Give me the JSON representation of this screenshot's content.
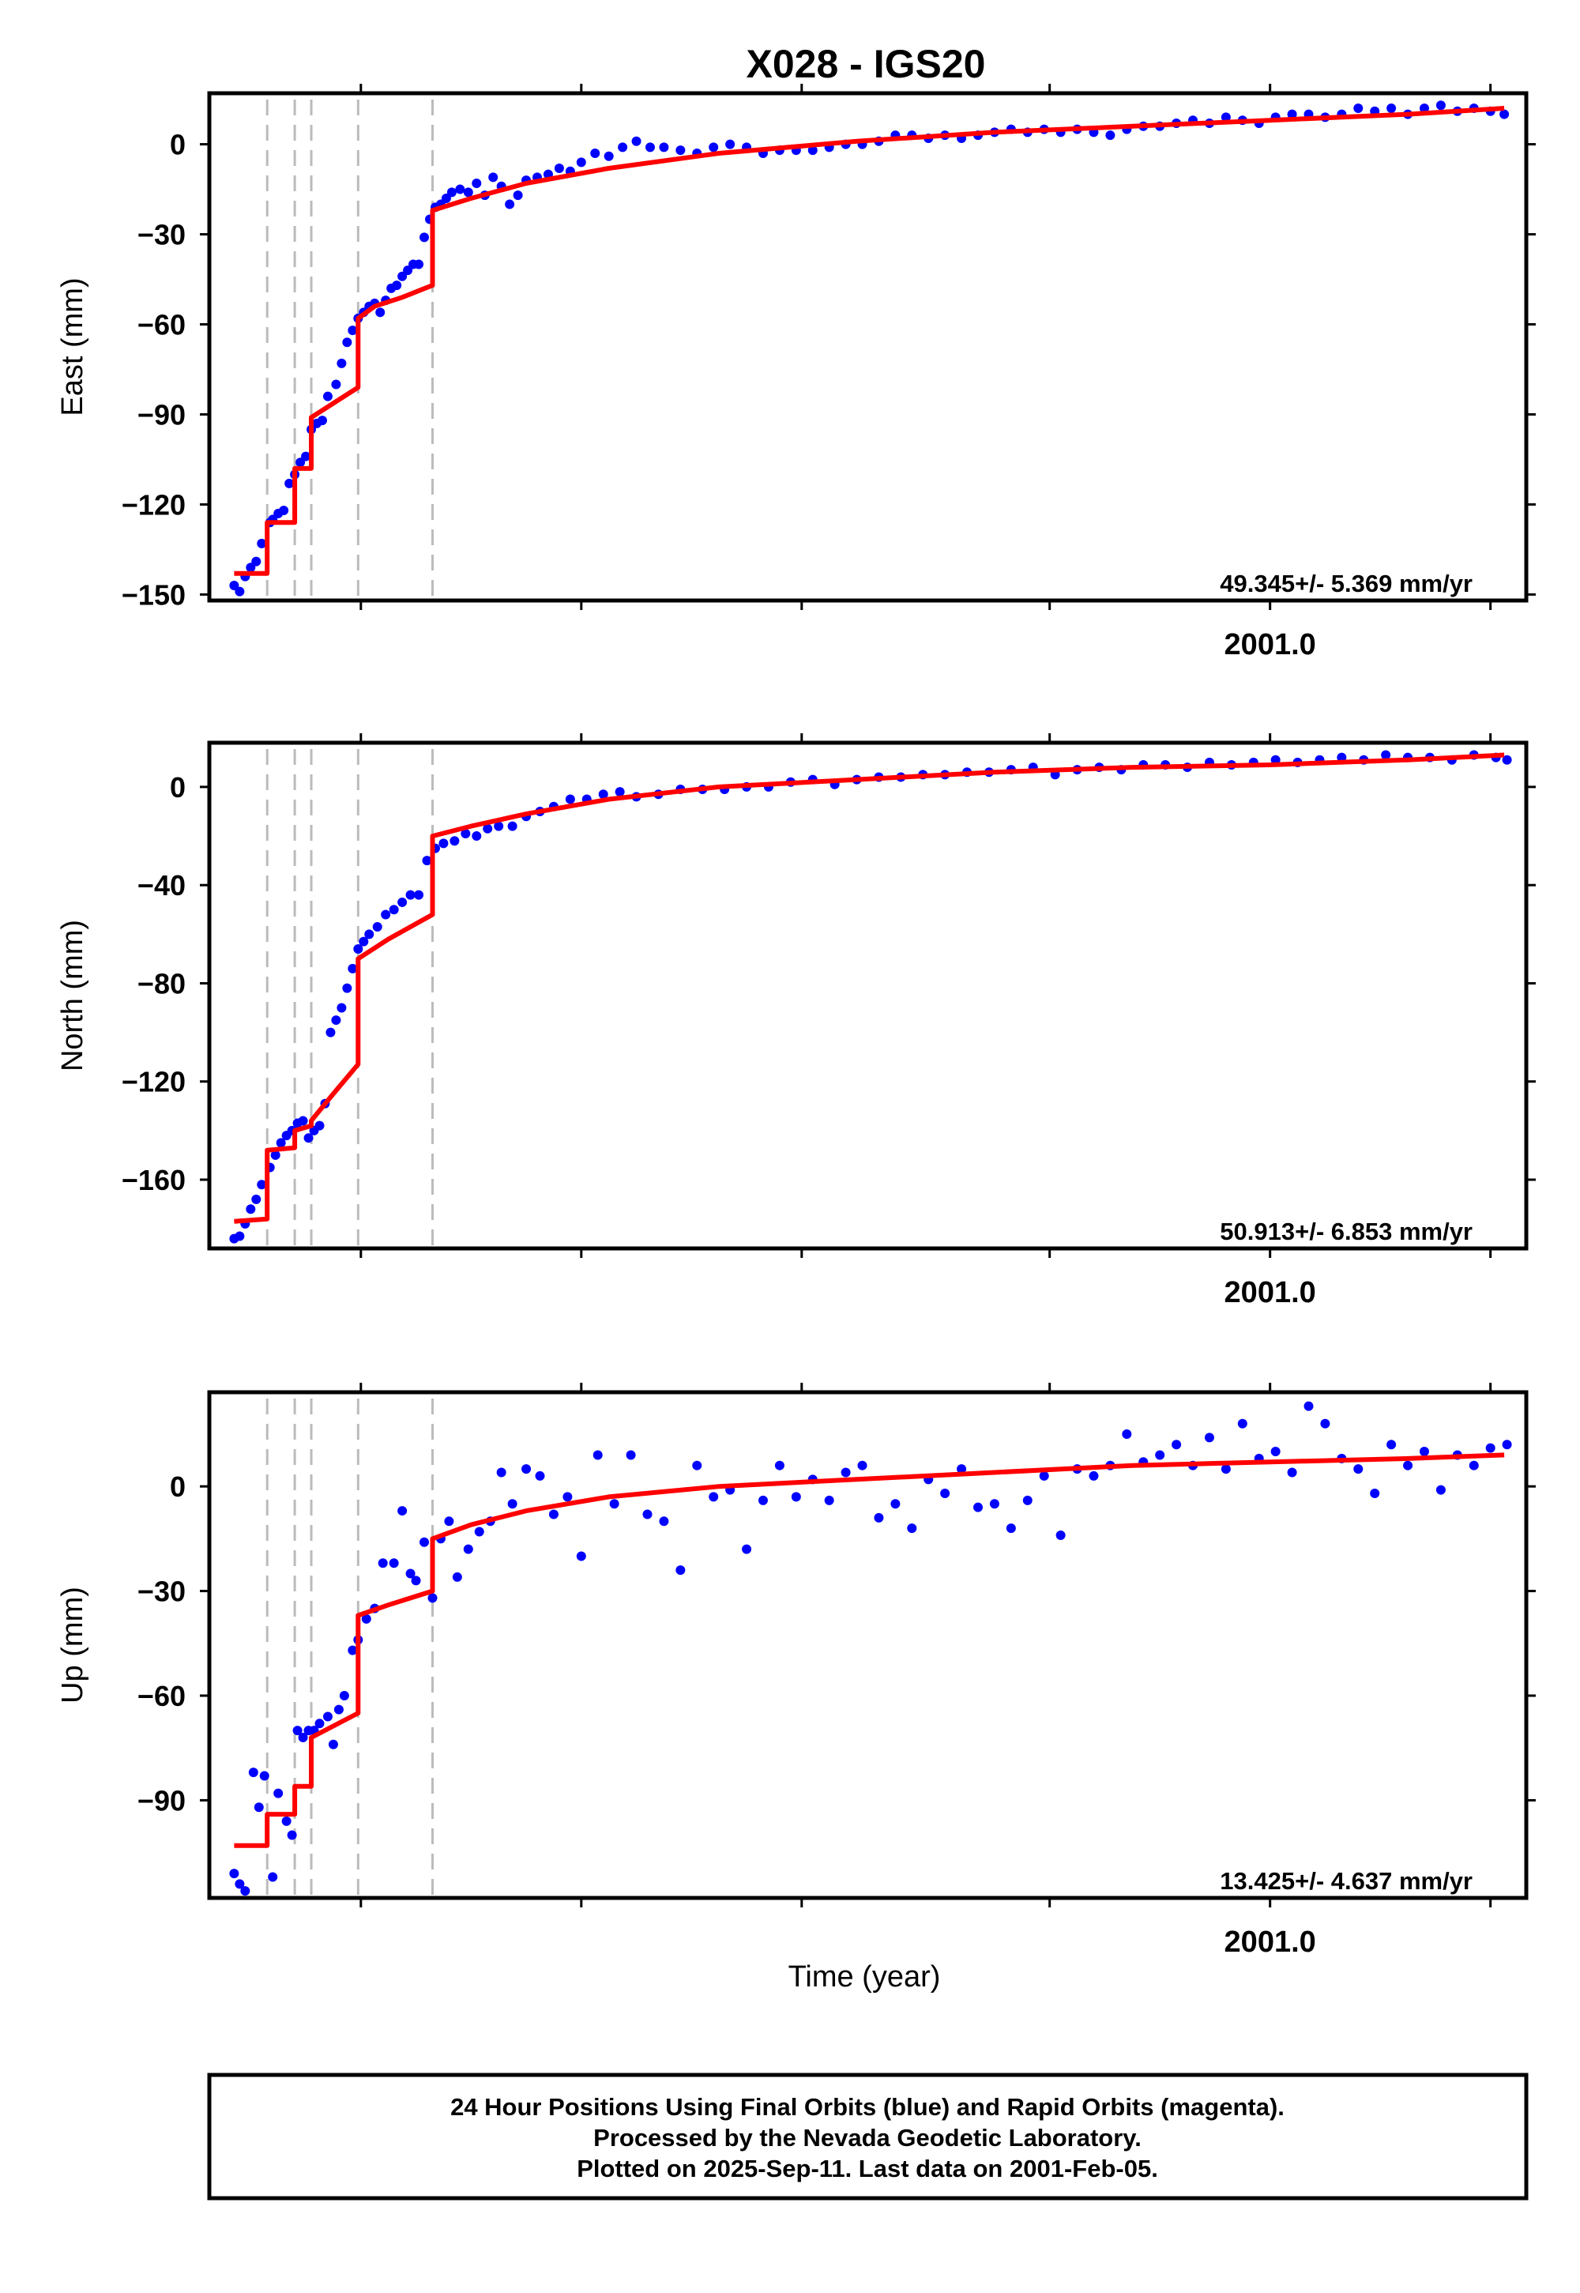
{
  "title": "X028 - IGS20",
  "footer": {
    "lines": [
      "24 Hour Positions Using Final Orbits (blue) and Rapid Orbits (magenta).",
      "Processed by the Nevada Geodetic Laboratory.",
      "Plotted on 2025-Sep-11. Last data on 2001-Feb-05."
    ]
  },
  "xlabel": "Time (year)",
  "colors": {
    "data": "#0000ff",
    "model": "#ff0000",
    "event": "#bbbbbb",
    "axes": "#000000"
  },
  "chart_data": [
    {
      "type": "scatter",
      "ylabel": "East (mm)",
      "rate": "49.345+/- 5.369 mm/yr",
      "ylim": [
        -152,
        17
      ],
      "yticks": [
        0,
        -30,
        -60,
        -90,
        -120,
        -150
      ],
      "xlim": [
        2000.615,
        2001.093
      ],
      "xticks_major": [
        {
          "value": 2001.0,
          "label": "2001.0"
        }
      ],
      "xticks_minor": [
        2000.67,
        2000.75,
        2000.83,
        2000.92,
        2001.0,
        2001.08
      ],
      "events": [
        2000.636,
        2000.646,
        2000.652,
        2000.669,
        2000.696
      ],
      "series": [
        {
          "kind": "observations",
          "x": [
            2000.624,
            2000.626,
            2000.628,
            2000.63,
            2000.632,
            2000.634,
            2000.637,
            2000.638,
            2000.64,
            2000.642,
            2000.644,
            2000.646,
            2000.648,
            2000.65,
            2000.652,
            2000.654,
            2000.656,
            2000.658,
            2000.661,
            2000.663,
            2000.665,
            2000.667,
            2000.669,
            2000.671,
            2000.673,
            2000.675,
            2000.677,
            2000.679,
            2000.681,
            2000.683,
            2000.685,
            2000.687,
            2000.689,
            2000.691,
            2000.693,
            2000.695,
            2000.697,
            2000.699,
            2000.701,
            2000.703,
            2000.706,
            2000.709,
            2000.712,
            2000.715,
            2000.718,
            2000.721,
            2000.724,
            2000.727,
            2000.73,
            2000.734,
            2000.738,
            2000.742,
            2000.746,
            2000.75,
            2000.755,
            2000.76,
            2000.765,
            2000.77,
            2000.775,
            2000.78,
            2000.786,
            2000.792,
            2000.798,
            2000.804,
            2000.81,
            2000.816,
            2000.822,
            2000.828,
            2000.834,
            2000.84,
            2000.846,
            2000.852,
            2000.858,
            2000.864,
            2000.87,
            2000.876,
            2000.882,
            2000.888,
            2000.894,
            2000.9,
            2000.906,
            2000.912,
            2000.918,
            2000.924,
            2000.93,
            2000.936,
            2000.942,
            2000.948,
            2000.954,
            2000.96,
            2000.966,
            2000.972,
            2000.978,
            2000.984,
            2000.99,
            2000.996,
            2001.002,
            2001.008,
            2001.014,
            2001.02,
            2001.026,
            2001.032,
            2001.038,
            2001.044,
            2001.05,
            2001.056,
            2001.062,
            2001.068,
            2001.074,
            2001.08,
            2001.085
          ],
          "y": [
            -147,
            -149,
            -144,
            -141,
            -139,
            -133,
            -126,
            -125,
            -123,
            -122,
            -113,
            -110,
            -106,
            -104,
            -95,
            -93,
            -92,
            -84,
            -80,
            -73,
            -66,
            -62,
            -58,
            -56,
            -54,
            -53,
            -56,
            -52,
            -48,
            -47,
            -44,
            -42,
            -40,
            -40,
            -31,
            -25,
            -21,
            -20,
            -18,
            -16,
            -15,
            -16,
            -13,
            -17,
            -11,
            -14,
            -20,
            -17,
            -12,
            -11,
            -10,
            -8,
            -9,
            -6,
            -3,
            -4,
            -1,
            1,
            -1,
            -1,
            -2,
            -3,
            -1,
            0,
            -1,
            -3,
            -2,
            -2,
            -2,
            -1,
            0,
            0,
            1,
            3,
            3,
            2,
            3,
            2,
            3,
            4,
            5,
            4,
            5,
            4,
            5,
            4,
            3,
            5,
            6,
            6,
            7,
            8,
            7,
            9,
            8,
            7,
            9,
            10,
            10,
            9,
            10,
            12,
            11,
            12,
            10,
            12,
            13,
            11,
            12,
            11,
            10
          ]
        },
        {
          "kind": "model",
          "x": [
            2000.624,
            2000.636,
            2000.636,
            2000.646,
            2000.646,
            2000.652,
            2000.652,
            2000.669,
            2000.669,
            2000.675,
            2000.685,
            2000.696,
            2000.696,
            2000.71,
            2000.73,
            2000.76,
            2000.8,
            2000.85,
            2000.9,
            2000.95,
            2001.0,
            2001.05,
            2001.085
          ],
          "y": [
            -143,
            -143,
            -126,
            -126,
            -108,
            -108,
            -91,
            -81,
            -58,
            -54,
            -51,
            -47,
            -22,
            -18,
            -13,
            -8,
            -3,
            1,
            4,
            6,
            8,
            10,
            12
          ]
        }
      ]
    },
    {
      "type": "scatter",
      "ylabel": "North (mm)",
      "rate": "50.913+/- 6.853 mm/yr",
      "ylim": [
        -188,
        18
      ],
      "yticks": [
        0,
        -40,
        -80,
        -120,
        -160
      ],
      "xlim": [
        2000.615,
        2001.093
      ],
      "xticks_major": [
        {
          "value": 2001.0,
          "label": "2001.0"
        }
      ],
      "xticks_minor": [
        2000.67,
        2000.75,
        2000.83,
        2000.92,
        2001.0,
        2001.08
      ],
      "events": [
        2000.636,
        2000.646,
        2000.652,
        2000.669,
        2000.696
      ],
      "series": [
        {
          "kind": "observations",
          "x": [
            2000.624,
            2000.626,
            2000.628,
            2000.63,
            2000.632,
            2000.634,
            2000.637,
            2000.639,
            2000.641,
            2000.643,
            2000.645,
            2000.647,
            2000.649,
            2000.651,
            2000.653,
            2000.655,
            2000.657,
            2000.659,
            2000.661,
            2000.663,
            2000.665,
            2000.667,
            2000.669,
            2000.671,
            2000.673,
            2000.676,
            2000.679,
            2000.682,
            2000.685,
            2000.688,
            2000.691,
            2000.694,
            2000.697,
            2000.7,
            2000.704,
            2000.708,
            2000.712,
            2000.716,
            2000.72,
            2000.725,
            2000.73,
            2000.735,
            2000.74,
            2000.746,
            2000.752,
            2000.758,
            2000.764,
            2000.77,
            2000.778,
            2000.786,
            2000.794,
            2000.802,
            2000.81,
            2000.818,
            2000.826,
            2000.834,
            2000.842,
            2000.85,
            2000.858,
            2000.866,
            2000.874,
            2000.882,
            2000.89,
            2000.898,
            2000.906,
            2000.914,
            2000.922,
            2000.93,
            2000.938,
            2000.946,
            2000.954,
            2000.962,
            2000.97,
            2000.978,
            2000.986,
            2000.994,
            2001.002,
            2001.01,
            2001.018,
            2001.026,
            2001.034,
            2001.042,
            2001.05,
            2001.058,
            2001.066,
            2001.074,
            2001.082,
            2001.086
          ],
          "y": [
            -184,
            -183,
            -178,
            -172,
            -168,
            -162,
            -155,
            -150,
            -145,
            -142,
            -140,
            -137,
            -136,
            -143,
            -140,
            -138,
            -129,
            -100,
            -95,
            -90,
            -82,
            -74,
            -66,
            -63,
            -60,
            -57,
            -52,
            -50,
            -47,
            -44,
            -44,
            -30,
            -25,
            -23,
            -22,
            -19,
            -20,
            -17,
            -16,
            -16,
            -12,
            -10,
            -8,
            -5,
            -5,
            -3,
            -2,
            -4,
            -3,
            -1,
            -1,
            -1,
            0,
            0,
            2,
            3,
            1,
            3,
            4,
            4,
            5,
            5,
            6,
            6,
            7,
            8,
            5,
            7,
            8,
            7,
            9,
            9,
            8,
            10,
            9,
            10,
            11,
            10,
            11,
            12,
            11,
            13,
            12,
            12,
            11,
            13,
            12,
            11
          ]
        },
        {
          "kind": "model",
          "x": [
            2000.624,
            2000.636,
            2000.636,
            2000.646,
            2000.646,
            2000.652,
            2000.652,
            2000.66,
            2000.669,
            2000.669,
            2000.68,
            2000.696,
            2000.696,
            2000.71,
            2000.73,
            2000.76,
            2000.8,
            2000.85,
            2000.9,
            2000.95,
            2001.0,
            2001.05,
            2001.085
          ],
          "y": [
            -177,
            -176,
            -148,
            -147,
            -140,
            -138,
            -136,
            -125,
            -113,
            -70,
            -62,
            -52,
            -20,
            -16,
            -11,
            -5,
            0,
            3,
            6,
            8,
            9,
            11,
            13
          ]
        }
      ]
    },
    {
      "type": "scatter",
      "ylabel": "Up (mm)",
      "rate": "13.425+/- 4.637 mm/yr",
      "ylim": [
        -118,
        27
      ],
      "yticks": [
        0,
        -30,
        -60,
        -90
      ],
      "xlim": [
        2000.615,
        2001.093
      ],
      "xticks_major": [
        {
          "value": 2001.0,
          "label": "2001.0"
        }
      ],
      "xticks_minor": [
        2000.67,
        2000.75,
        2000.83,
        2000.92,
        2001.0,
        2001.08
      ],
      "events": [
        2000.636,
        2000.646,
        2000.652,
        2000.669,
        2000.696
      ],
      "series": [
        {
          "kind": "observations",
          "x": [
            2000.624,
            2000.626,
            2000.628,
            2000.631,
            2000.633,
            2000.635,
            2000.638,
            2000.64,
            2000.643,
            2000.645,
            2000.647,
            2000.649,
            2000.651,
            2000.653,
            2000.655,
            2000.658,
            2000.66,
            2000.662,
            2000.664,
            2000.667,
            2000.669,
            2000.672,
            2000.675,
            2000.678,
            2000.682,
            2000.685,
            2000.688,
            2000.69,
            2000.693,
            2000.696,
            2000.699,
            2000.702,
            2000.705,
            2000.709,
            2000.713,
            2000.717,
            2000.721,
            2000.725,
            2000.73,
            2000.735,
            2000.74,
            2000.745,
            2000.75,
            2000.756,
            2000.762,
            2000.768,
            2000.774,
            2000.78,
            2000.786,
            2000.792,
            2000.798,
            2000.804,
            2000.81,
            2000.816,
            2000.822,
            2000.828,
            2000.834,
            2000.84,
            2000.846,
            2000.852,
            2000.858,
            2000.864,
            2000.87,
            2000.876,
            2000.882,
            2000.888,
            2000.894,
            2000.9,
            2000.906,
            2000.912,
            2000.918,
            2000.924,
            2000.93,
            2000.936,
            2000.942,
            2000.948,
            2000.954,
            2000.96,
            2000.966,
            2000.972,
            2000.978,
            2000.984,
            2000.99,
            2000.996,
            2001.002,
            2001.008,
            2001.014,
            2001.02,
            2001.026,
            2001.032,
            2001.038,
            2001.044,
            2001.05,
            2001.056,
            2001.062,
            2001.068,
            2001.074,
            2001.08,
            2001.086
          ],
          "y": [
            -111,
            -114,
            -116,
            -82,
            -92,
            -83,
            -112,
            -88,
            -96,
            -100,
            -70,
            -72,
            -70,
            -70,
            -68,
            -66,
            -74,
            -64,
            -60,
            -47,
            -44,
            -38,
            -35,
            -22,
            -22,
            -7,
            -25,
            -27,
            -16,
            -32,
            -15,
            -10,
            -26,
            -18,
            -13,
            -10,
            4,
            -5,
            5,
            3,
            -8,
            -3,
            -20,
            9,
            -5,
            9,
            -8,
            -10,
            -24,
            6,
            -3,
            -1,
            -18,
            -4,
            6,
            -3,
            2,
            -4,
            4,
            6,
            -9,
            -5,
            -12,
            2,
            -2,
            5,
            -6,
            -5,
            -12,
            -4,
            3,
            -14,
            5,
            3,
            6,
            15,
            7,
            9,
            12,
            6,
            14,
            5,
            18,
            8,
            10,
            4,
            23,
            18,
            8,
            5,
            -2,
            12,
            6,
            10,
            -1,
            9,
            6,
            11,
            12
          ]
        },
        {
          "kind": "model",
          "x": [
            2000.624,
            2000.636,
            2000.636,
            2000.646,
            2000.646,
            2000.652,
            2000.652,
            2000.669,
            2000.669,
            2000.68,
            2000.696,
            2000.696,
            2000.71,
            2000.73,
            2000.76,
            2000.8,
            2000.85,
            2000.9,
            2000.95,
            2001.0,
            2001.05,
            2001.085
          ],
          "y": [
            -103,
            -103,
            -94,
            -94,
            -86,
            -86,
            -72,
            -65,
            -37,
            -34,
            -30,
            -15,
            -11,
            -7,
            -3,
            0,
            2,
            4,
            6,
            7,
            8,
            9
          ]
        }
      ]
    }
  ]
}
